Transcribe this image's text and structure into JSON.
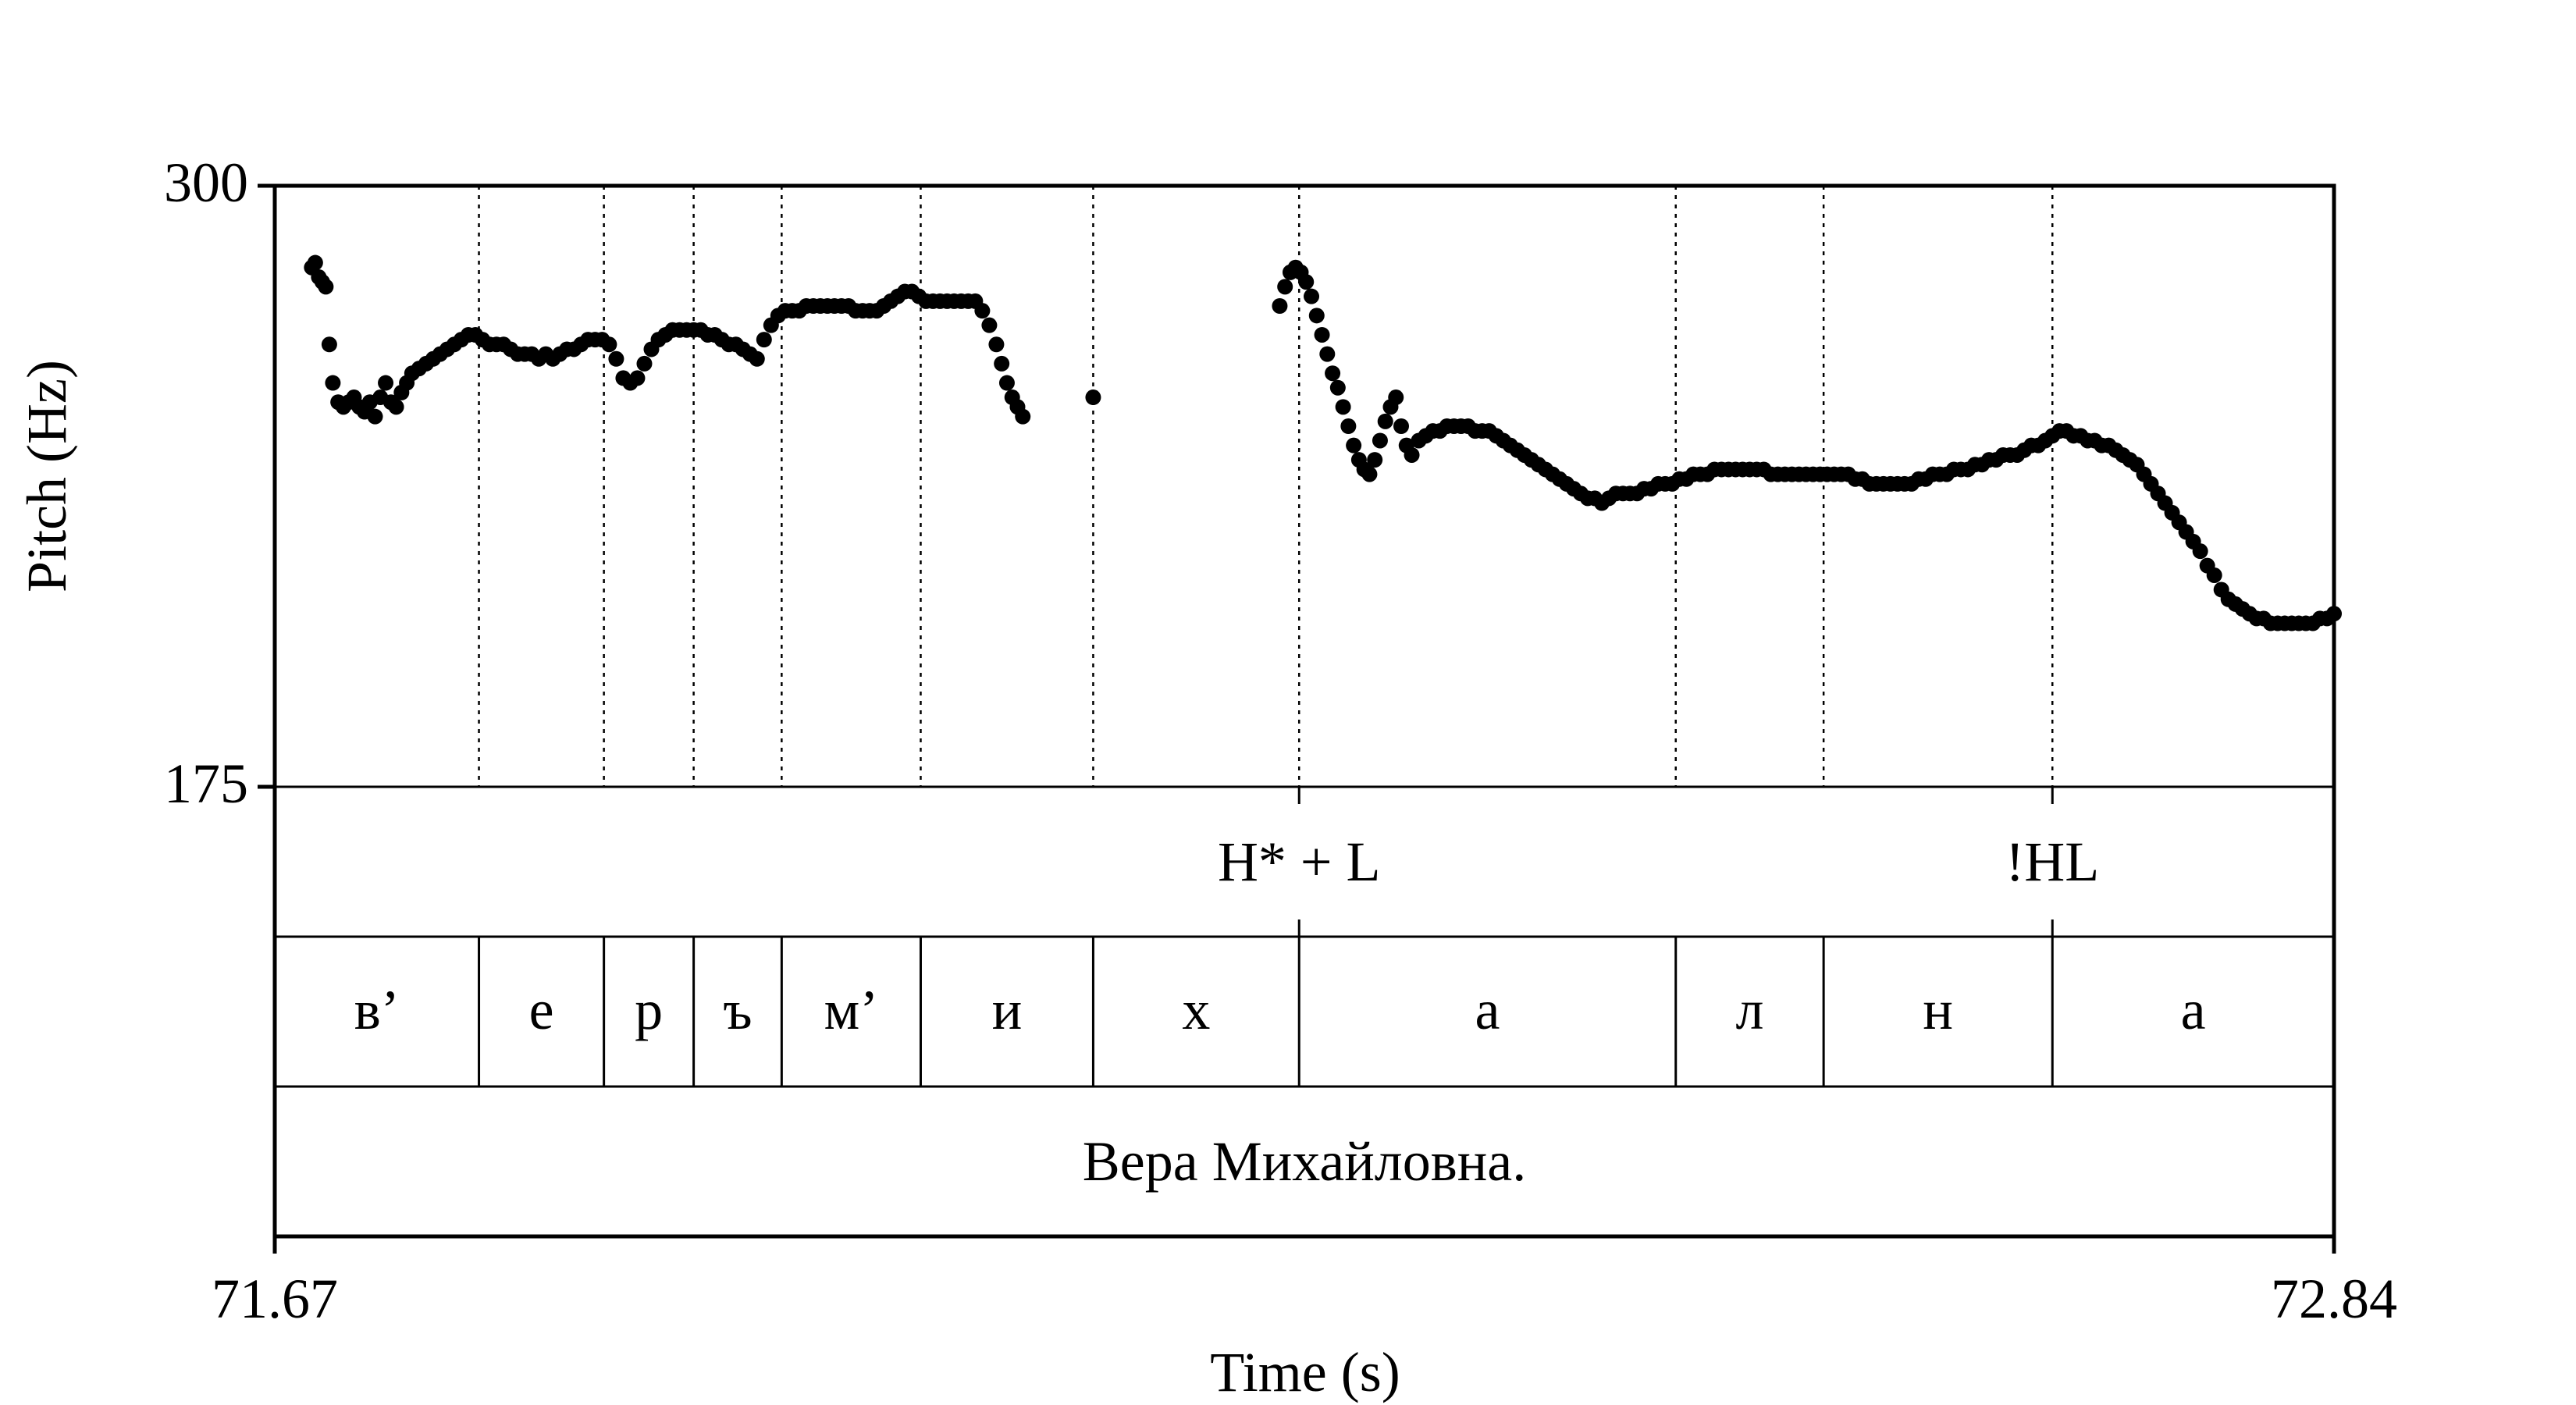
{
  "chart_data": {
    "type": "scatter",
    "xlabel": "Time (s)",
    "ylabel": "Pitch (Hz)",
    "xlim": [
      71.67,
      72.84
    ],
    "ylim": [
      175,
      300
    ],
    "x_tick_labels": [
      "71.67",
      "72.84"
    ],
    "y_tick_labels": [
      "300",
      "175"
    ],
    "segment_boundaries": [
      71.786,
      71.857,
      71.908,
      71.958,
      72.037,
      72.135,
      72.252,
      72.466,
      72.55,
      72.68
    ],
    "tiers": [
      {
        "name": "tones",
        "labels": [
          {
            "text": "H* + L",
            "t": 72.252
          },
          {
            "text": "!HL",
            "t": 72.68
          }
        ]
      },
      {
        "name": "segments",
        "intervals": [
          {
            "text": "в’",
            "start": 71.67,
            "end": 71.786
          },
          {
            "text": "е",
            "start": 71.786,
            "end": 71.857
          },
          {
            "text": "р",
            "start": 71.857,
            "end": 71.908
          },
          {
            "text": "ъ",
            "start": 71.908,
            "end": 71.958
          },
          {
            "text": "м’",
            "start": 71.958,
            "end": 72.037
          },
          {
            "text": "и",
            "start": 72.037,
            "end": 72.135
          },
          {
            "text": "х",
            "start": 72.135,
            "end": 72.252
          },
          {
            "text": "а",
            "start": 72.252,
            "end": 72.466
          },
          {
            "text": "л",
            "start": 72.466,
            "end": 72.55
          },
          {
            "text": "н",
            "start": 72.55,
            "end": 72.68
          },
          {
            "text": "а",
            "start": 72.68,
            "end": 72.84
          }
        ]
      },
      {
        "name": "words",
        "intervals": [
          {
            "text": "Вера Михайловна.",
            "start": 71.67,
            "end": 72.84
          }
        ]
      }
    ],
    "series": [
      {
        "points": [
          [
            71.691,
            283
          ],
          [
            71.693,
            284
          ],
          [
            71.695,
            281
          ],
          [
            71.697,
            280
          ],
          [
            71.699,
            279
          ],
          [
            71.701,
            267
          ],
          [
            71.703,
            259
          ],
          [
            71.706,
            255
          ],
          [
            71.709,
            254
          ],
          [
            71.712,
            255
          ],
          [
            71.715,
            256
          ],
          [
            71.718,
            254
          ],
          [
            71.721,
            253
          ],
          [
            71.724,
            255
          ],
          [
            71.727,
            252
          ],
          [
            71.73,
            256
          ],
          [
            71.733,
            259
          ],
          [
            71.736,
            255
          ],
          [
            71.739,
            254
          ],
          [
            71.742,
            257
          ],
          [
            71.745,
            259
          ],
          [
            71.748,
            261
          ],
          [
            71.752,
            262
          ],
          [
            71.756,
            263
          ],
          [
            71.76,
            264
          ],
          [
            71.764,
            265
          ],
          [
            71.768,
            266
          ],
          [
            71.772,
            267
          ],
          [
            71.776,
            268
          ],
          [
            71.78,
            269
          ],
          [
            71.784,
            269
          ],
          [
            71.788,
            268
          ],
          [
            71.792,
            267
          ],
          [
            71.796,
            267
          ],
          [
            71.8,
            267
          ],
          [
            71.804,
            266
          ],
          [
            71.808,
            265
          ],
          [
            71.812,
            265
          ],
          [
            71.816,
            265
          ],
          [
            71.82,
            264
          ],
          [
            71.824,
            265
          ],
          [
            71.828,
            264
          ],
          [
            71.832,
            265
          ],
          [
            71.836,
            266
          ],
          [
            71.84,
            266
          ],
          [
            71.844,
            267
          ],
          [
            71.848,
            268
          ],
          [
            71.852,
            268
          ],
          [
            71.856,
            268
          ],
          [
            71.86,
            267
          ],
          [
            71.864,
            264
          ],
          [
            71.868,
            260
          ],
          [
            71.872,
            259
          ],
          [
            71.876,
            260
          ],
          [
            71.88,
            263
          ],
          [
            71.884,
            266
          ],
          [
            71.888,
            268
          ],
          [
            71.892,
            269
          ],
          [
            71.896,
            270
          ],
          [
            71.9,
            270
          ],
          [
            71.904,
            270
          ],
          [
            71.908,
            270
          ],
          [
            71.912,
            270
          ],
          [
            71.916,
            269
          ],
          [
            71.92,
            269
          ],
          [
            71.924,
            268
          ],
          [
            71.928,
            267
          ],
          [
            71.932,
            267
          ],
          [
            71.936,
            266
          ],
          [
            71.94,
            265
          ],
          [
            71.944,
            264
          ],
          [
            71.948,
            268
          ],
          [
            71.952,
            271
          ],
          [
            71.956,
            273
          ],
          [
            71.96,
            274
          ],
          [
            71.964,
            274
          ],
          [
            71.968,
            274
          ],
          [
            71.972,
            275
          ],
          [
            71.976,
            275
          ],
          [
            71.98,
            275
          ],
          [
            71.984,
            275
          ],
          [
            71.988,
            275
          ],
          [
            71.992,
            275
          ],
          [
            71.996,
            275
          ],
          [
            72.0,
            274
          ],
          [
            72.004,
            274
          ],
          [
            72.008,
            274
          ],
          [
            72.012,
            274
          ],
          [
            72.016,
            275
          ],
          [
            72.02,
            276
          ],
          [
            72.024,
            277
          ],
          [
            72.028,
            278
          ],
          [
            72.032,
            278
          ],
          [
            72.036,
            277
          ],
          [
            72.04,
            276
          ],
          [
            72.044,
            276
          ],
          [
            72.048,
            276
          ],
          [
            72.052,
            276
          ],
          [
            72.056,
            276
          ],
          [
            72.06,
            276
          ],
          [
            72.064,
            276
          ],
          [
            72.068,
            276
          ],
          [
            72.072,
            274
          ],
          [
            72.076,
            271
          ],
          [
            72.08,
            267
          ],
          [
            72.083,
            263
          ],
          [
            72.086,
            259
          ],
          [
            72.089,
            256
          ],
          [
            72.092,
            254
          ],
          [
            72.095,
            252
          ],
          [
            72.135,
            256
          ],
          [
            72.241,
            275
          ],
          [
            72.244,
            279
          ],
          [
            72.247,
            282
          ],
          [
            72.25,
            283
          ],
          [
            72.253,
            282
          ],
          [
            72.256,
            280
          ],
          [
            72.259,
            277
          ],
          [
            72.262,
            273
          ],
          [
            72.265,
            269
          ],
          [
            72.268,
            265
          ],
          [
            72.271,
            261
          ],
          [
            72.274,
            258
          ],
          [
            72.277,
            254
          ],
          [
            72.28,
            250
          ],
          [
            72.283,
            246
          ],
          [
            72.286,
            243
          ],
          [
            72.289,
            241
          ],
          [
            72.292,
            240
          ],
          [
            72.295,
            243
          ],
          [
            72.298,
            247
          ],
          [
            72.301,
            251
          ],
          [
            72.304,
            254
          ],
          [
            72.307,
            256
          ],
          [
            72.31,
            250
          ],
          [
            72.313,
            246
          ],
          [
            72.316,
            244
          ],
          [
            72.32,
            247
          ],
          [
            72.324,
            248
          ],
          [
            72.328,
            249
          ],
          [
            72.332,
            249
          ],
          [
            72.336,
            250
          ],
          [
            72.34,
            250
          ],
          [
            72.344,
            250
          ],
          [
            72.348,
            250
          ],
          [
            72.352,
            249
          ],
          [
            72.356,
            249
          ],
          [
            72.36,
            249
          ],
          [
            72.364,
            248
          ],
          [
            72.368,
            247
          ],
          [
            72.372,
            246
          ],
          [
            72.376,
            245
          ],
          [
            72.38,
            244
          ],
          [
            72.384,
            243
          ],
          [
            72.388,
            242
          ],
          [
            72.392,
            241
          ],
          [
            72.396,
            240
          ],
          [
            72.4,
            239
          ],
          [
            72.404,
            238
          ],
          [
            72.408,
            237
          ],
          [
            72.412,
            236
          ],
          [
            72.416,
            235
          ],
          [
            72.42,
            235
          ],
          [
            72.424,
            234
          ],
          [
            72.428,
            235
          ],
          [
            72.432,
            236
          ],
          [
            72.436,
            236
          ],
          [
            72.44,
            236
          ],
          [
            72.444,
            236
          ],
          [
            72.448,
            237
          ],
          [
            72.452,
            237
          ],
          [
            72.456,
            238
          ],
          [
            72.46,
            238
          ],
          [
            72.464,
            238
          ],
          [
            72.468,
            239
          ],
          [
            72.472,
            239
          ],
          [
            72.476,
            240
          ],
          [
            72.48,
            240
          ],
          [
            72.484,
            240
          ],
          [
            72.488,
            241
          ],
          [
            72.492,
            241
          ],
          [
            72.496,
            241
          ],
          [
            72.5,
            241
          ],
          [
            72.504,
            241
          ],
          [
            72.508,
            241
          ],
          [
            72.512,
            241
          ],
          [
            72.516,
            241
          ],
          [
            72.52,
            240
          ],
          [
            72.524,
            240
          ],
          [
            72.528,
            240
          ],
          [
            72.532,
            240
          ],
          [
            72.536,
            240
          ],
          [
            72.54,
            240
          ],
          [
            72.544,
            240
          ],
          [
            72.548,
            240
          ],
          [
            72.552,
            240
          ],
          [
            72.556,
            240
          ],
          [
            72.56,
            240
          ],
          [
            72.564,
            240
          ],
          [
            72.568,
            239
          ],
          [
            72.572,
            239
          ],
          [
            72.576,
            238
          ],
          [
            72.58,
            238
          ],
          [
            72.584,
            238
          ],
          [
            72.588,
            238
          ],
          [
            72.592,
            238
          ],
          [
            72.596,
            238
          ],
          [
            72.6,
            238
          ],
          [
            72.604,
            239
          ],
          [
            72.608,
            239
          ],
          [
            72.612,
            240
          ],
          [
            72.616,
            240
          ],
          [
            72.62,
            240
          ],
          [
            72.624,
            241
          ],
          [
            72.628,
            241
          ],
          [
            72.632,
            241
          ],
          [
            72.636,
            242
          ],
          [
            72.64,
            242
          ],
          [
            72.644,
            243
          ],
          [
            72.648,
            243
          ],
          [
            72.652,
            244
          ],
          [
            72.656,
            244
          ],
          [
            72.66,
            244
          ],
          [
            72.664,
            245
          ],
          [
            72.668,
            246
          ],
          [
            72.672,
            246
          ],
          [
            72.676,
            247
          ],
          [
            72.68,
            248
          ],
          [
            72.684,
            249
          ],
          [
            72.688,
            249
          ],
          [
            72.692,
            248
          ],
          [
            72.696,
            248
          ],
          [
            72.7,
            247
          ],
          [
            72.704,
            247
          ],
          [
            72.708,
            246
          ],
          [
            72.712,
            246
          ],
          [
            72.716,
            245
          ],
          [
            72.72,
            244
          ],
          [
            72.724,
            243
          ],
          [
            72.728,
            242
          ],
          [
            72.732,
            240
          ],
          [
            72.736,
            238
          ],
          [
            72.74,
            236
          ],
          [
            72.744,
            234
          ],
          [
            72.748,
            232
          ],
          [
            72.752,
            230
          ],
          [
            72.756,
            228
          ],
          [
            72.76,
            226
          ],
          [
            72.764,
            224
          ],
          [
            72.768,
            221
          ],
          [
            72.772,
            219
          ],
          [
            72.776,
            216
          ],
          [
            72.78,
            214
          ],
          [
            72.784,
            213
          ],
          [
            72.788,
            212
          ],
          [
            72.792,
            211
          ],
          [
            72.796,
            210
          ],
          [
            72.8,
            210
          ],
          [
            72.804,
            209
          ],
          [
            72.808,
            209
          ],
          [
            72.812,
            209
          ],
          [
            72.816,
            209
          ],
          [
            72.82,
            209
          ],
          [
            72.824,
            209
          ],
          [
            72.828,
            209
          ],
          [
            72.832,
            210
          ],
          [
            72.836,
            210
          ],
          [
            72.84,
            211
          ]
        ]
      }
    ]
  }
}
